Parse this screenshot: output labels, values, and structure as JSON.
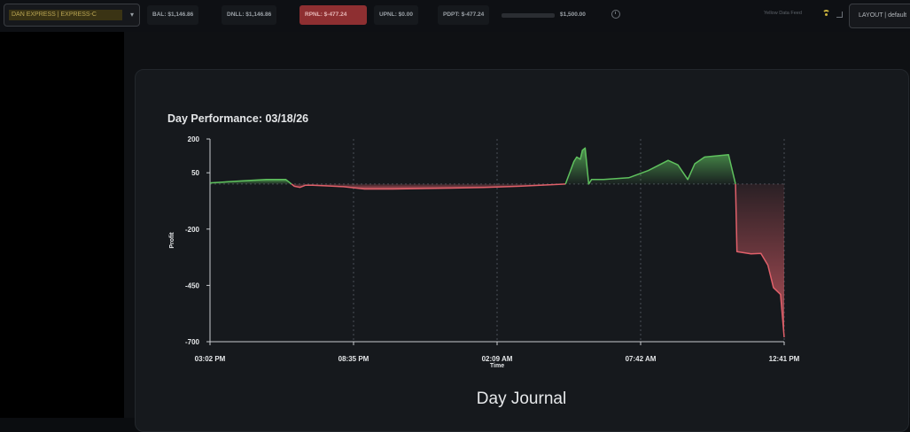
{
  "toolbar": {
    "account_label": "DAN EXPRESS | EXPRESS-C",
    "stats": [
      {
        "key": "bal",
        "label": "BAL: $1,146.86"
      },
      {
        "key": "dnll",
        "label": "DNLL: $1,146.86"
      },
      {
        "key": "rpnl",
        "label": "RPNL: $-477.24"
      },
      {
        "key": "upnl",
        "label": "UPNL: $0.00"
      },
      {
        "key": "pdpt",
        "label": "PDPT: $-477.24"
      }
    ],
    "pdpt_target": "$1,500.00",
    "data_feed_label": "Yellow Data Feed",
    "layout_button": "LAYOUT | default"
  },
  "colors": {
    "accent_gold": "#c9b23e",
    "rpnl_bg": "#8e2f31",
    "profit_green": "#5fc15e",
    "loss_red": "#e0606a"
  },
  "icons": [
    "chevron-down-icon",
    "clock-icon",
    "wifi-icon",
    "expand-icon"
  ],
  "journal": {
    "title": "Day Journal"
  },
  "chart_data": {
    "type": "area",
    "title": "Day Performance: 03/18/26",
    "xlabel": "Time",
    "ylabel": "Profit",
    "x_ticks": [
      "03:02 PM",
      "08:35 PM",
      "02:09 AM",
      "07:42 AM",
      "12:41 PM"
    ],
    "y_ticks": [
      200,
      50,
      -200,
      -450,
      -700
    ],
    "ylim": [
      -700,
      200
    ],
    "grid": "vertical dotted at x ticks, dotted zero line",
    "series": [
      {
        "x": [
          0,
          2.5,
          4,
          5.4,
          6,
          6.4,
          6.8,
          7.3,
          8.2,
          9.5,
          11,
          13,
          15,
          17,
          19.5,
          22,
          25.3,
          25.9,
          26.1,
          26.35,
          26.5,
          26.7,
          26.95,
          27.15,
          27.35,
          28,
          29.8,
          31.2,
          32.6,
          33.3,
          34,
          34.5,
          35.2,
          36.9,
          37.4,
          37.5,
          38.5,
          39.2,
          39.7,
          40.1,
          40.6,
          40.86
        ],
        "y": [
          5,
          15,
          20,
          20,
          -10,
          -15,
          -5,
          -5,
          -8,
          -12,
          -22,
          -22,
          -20,
          -18,
          -15,
          -10,
          0,
          100,
          120,
          110,
          150,
          160,
          0,
          20,
          20,
          20,
          28,
          60,
          105,
          85,
          20,
          90,
          120,
          130,
          0,
          -300,
          -310,
          -308,
          -360,
          -460,
          -490,
          -680
        ]
      }
    ]
  }
}
